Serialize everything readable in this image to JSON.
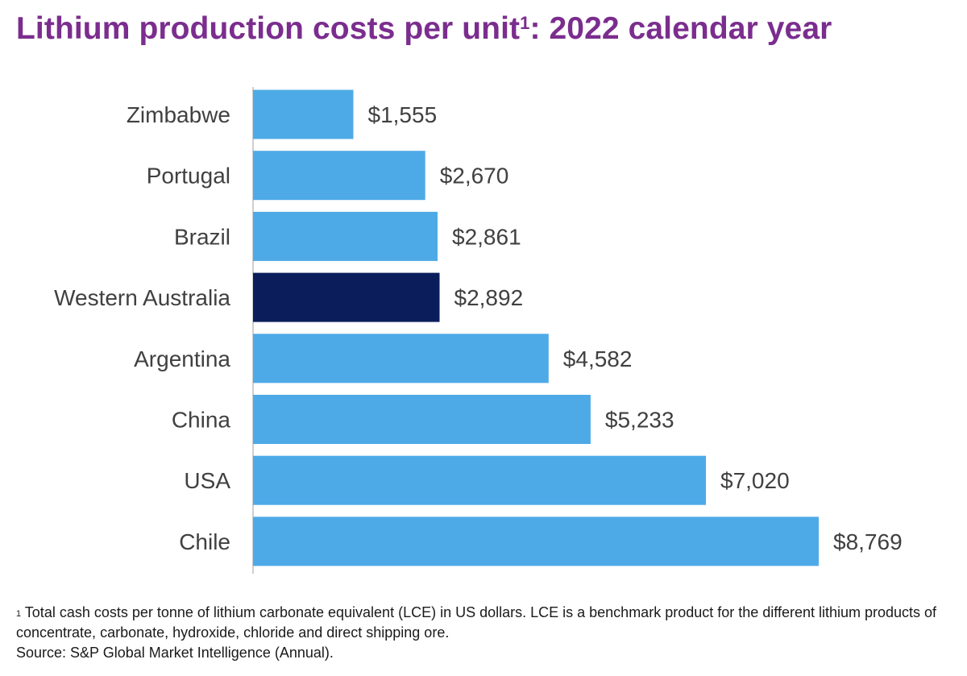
{
  "title": {
    "text": "Lithium production costs per unit",
    "superscript": "1",
    "suffix": ": 2022 calendar year"
  },
  "colors": {
    "title": "#7b2d8e",
    "bar_default": "#4eaae6",
    "bar_highlight": "#0b1e5b",
    "axis": "#bfbfbf",
    "label_text": "#404040"
  },
  "chart_data": {
    "type": "bar",
    "orientation": "horizontal",
    "categories": [
      "Zimbabwe",
      "Portugal",
      "Brazil",
      "Western Australia",
      "Argentina",
      "China",
      "USA",
      "Chile"
    ],
    "values": [
      1555,
      2670,
      2861,
      2892,
      4582,
      5233,
      7020,
      8769
    ],
    "value_labels": [
      "$1,555",
      "$2,670",
      "$2,861",
      "$2,892",
      "$4,582",
      "$5,233",
      "$7,020",
      "$8,769"
    ],
    "highlight": "Western Australia",
    "xlim": [
      0,
      8769
    ],
    "grid": false,
    "legend": "none"
  },
  "footnote": {
    "marker": "1",
    "text": " Total cash costs per tonne of lithium carbonate equivalent (LCE) in US dollars. LCE is a benchmark product for the different lithium products of concentrate, carbonate, hydroxide, chloride and direct shipping ore.",
    "source": "Source: S&P Global Market Intelligence (Annual)."
  }
}
